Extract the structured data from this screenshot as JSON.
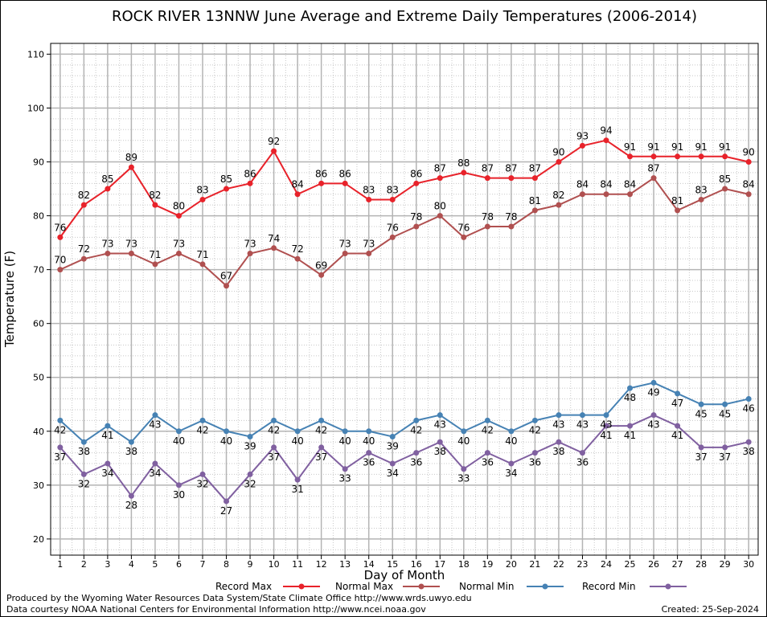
{
  "chart_data": {
    "type": "line",
    "title": "ROCK RIVER 13NNW June Average and Extreme Daily Temperatures (2006-2014)",
    "xlabel": "Day of Month",
    "ylabel": "Temperature (F)",
    "xlim": [
      0.6,
      30.4
    ],
    "ylim": [
      17,
      112
    ],
    "x_ticks": [
      1,
      2,
      3,
      4,
      5,
      6,
      7,
      8,
      9,
      10,
      11,
      12,
      13,
      14,
      15,
      16,
      17,
      18,
      19,
      20,
      21,
      22,
      23,
      24,
      25,
      26,
      27,
      28,
      29,
      30
    ],
    "y_ticks": [
      20,
      30,
      40,
      50,
      60,
      70,
      80,
      90,
      100,
      110
    ],
    "grid": true,
    "legend_position": "bottom",
    "x": [
      1,
      2,
      3,
      4,
      5,
      6,
      7,
      8,
      9,
      10,
      11,
      12,
      13,
      14,
      15,
      16,
      17,
      18,
      19,
      20,
      21,
      22,
      23,
      24,
      25,
      26,
      27,
      28,
      29,
      30
    ],
    "series": [
      {
        "name": "Record Max",
        "color": "#e8222a",
        "label_side": "above",
        "values": [
          76,
          82,
          85,
          89,
          82,
          80,
          83,
          85,
          86,
          92,
          84,
          86,
          86,
          83,
          83,
          86,
          87,
          88,
          87,
          87,
          87,
          90,
          93,
          94,
          91,
          91,
          91,
          91,
          91,
          90
        ]
      },
      {
        "name": "Normal Max",
        "color": "#b05050",
        "label_side": "above",
        "values": [
          70,
          72,
          73,
          73,
          71,
          73,
          71,
          67,
          73,
          74,
          72,
          69,
          73,
          73,
          76,
          78,
          80,
          76,
          78,
          78,
          81,
          82,
          84,
          84,
          84,
          87,
          81,
          83,
          85,
          84
        ]
      },
      {
        "name": "Normal Min",
        "color": "#4682b4",
        "label_side": "below",
        "values": [
          42,
          38,
          41,
          38,
          43,
          40,
          42,
          40,
          39,
          42,
          40,
          42,
          40,
          40,
          39,
          42,
          43,
          40,
          42,
          40,
          42,
          43,
          43,
          43,
          48,
          49,
          47,
          45,
          45,
          46
        ]
      },
      {
        "name": "Record Min",
        "color": "#8060a0",
        "label_side": "below",
        "values": [
          37,
          32,
          34,
          28,
          34,
          30,
          32,
          27,
          32,
          37,
          31,
          37,
          33,
          36,
          34,
          36,
          38,
          33,
          36,
          34,
          36,
          38,
          36,
          41,
          41,
          43,
          41,
          37,
          37,
          38
        ]
      }
    ]
  },
  "footer": {
    "line1": "Produced by the Wyoming Water Resources Data System/State Climate Office http://www.wrds.uwyo.edu",
    "line2": "Data courtesy NOAA National Centers for Environmental Information http://www.ncei.noaa.gov",
    "created": "Created:  25-Sep-2024"
  }
}
